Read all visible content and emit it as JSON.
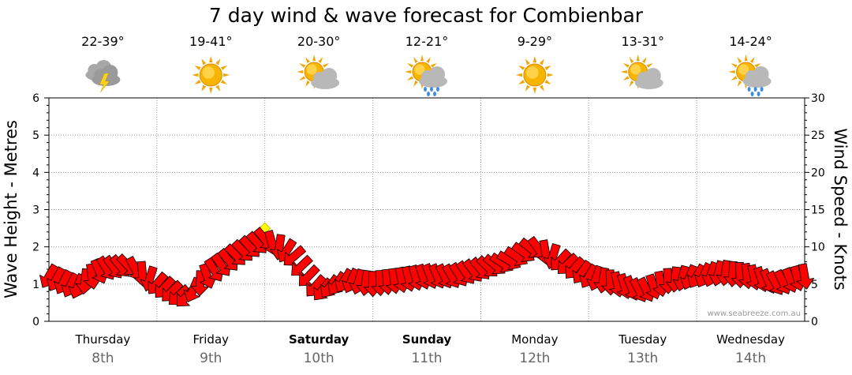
{
  "chart_data": {
    "type": "line",
    "title": "7 day wind & wave forecast for Combienbar",
    "ylabel": "Wave Height - Metres",
    "y2label": "Wind Speed - Knots",
    "ylim": [
      0,
      6
    ],
    "y2lim": [
      0,
      30
    ],
    "yticks": [
      "0",
      "1",
      "2",
      "3",
      "4",
      "5",
      "6"
    ],
    "y2ticks": [
      "0",
      "5",
      "10",
      "15",
      "20",
      "25",
      "30"
    ],
    "grid": true,
    "days": [
      {
        "name": "Thursday",
        "date": "8th",
        "bold": false,
        "temp": "22-39°",
        "icon": "storm-cloud-icon"
      },
      {
        "name": "Friday",
        "date": "9th",
        "bold": false,
        "temp": "19-41°",
        "icon": "sun-icon"
      },
      {
        "name": "Saturday",
        "date": "10th",
        "bold": true,
        "temp": "20-30°",
        "icon": "sun-cloud-icon"
      },
      {
        "name": "Sunday",
        "date": "11th",
        "bold": true,
        "temp": "12-21°",
        "icon": "sun-rain-icon"
      },
      {
        "name": "Monday",
        "date": "12th",
        "bold": false,
        "temp": "9-29°",
        "icon": "sun-icon"
      },
      {
        "name": "Tuesday",
        "date": "13th",
        "bold": false,
        "temp": "13-31°",
        "icon": "sun-cloud-icon"
      },
      {
        "name": "Wednesday",
        "date": "14th",
        "bold": false,
        "temp": "14-24°",
        "icon": "sun-rain-icon"
      }
    ],
    "series": [
      {
        "name": "Wind Speed",
        "unit": "knots",
        "color": "#ff0000",
        "x_hours": [
          0,
          6,
          12,
          18,
          24,
          30,
          36,
          42,
          48,
          54,
          60,
          66,
          72,
          78,
          84,
          90,
          96,
          102,
          108,
          114,
          120,
          126,
          132,
          138,
          144,
          150,
          156,
          162,
          168
        ],
        "values": [
          6,
          4.5,
          7,
          7.5,
          5,
          3,
          6.5,
          9,
          11,
          9,
          4,
          5.5,
          5,
          5.5,
          6,
          6,
          7,
          8,
          10,
          8,
          6,
          5,
          4,
          5.5,
          6,
          6.5,
          6,
          5,
          6
        ],
        "direction_deg": [
          120,
          115,
          60,
          45,
          130,
          140,
          60,
          45,
          50,
          140,
          130,
          120,
          90,
          80,
          70,
          60,
          50,
          30,
          40,
          140,
          120,
          80,
          60,
          90,
          120,
          100,
          80,
          60,
          80
        ]
      },
      {
        "name": "Wind Gust",
        "unit": "knots",
        "color": "#ffff00",
        "x_hours": [
          48
        ],
        "values": [
          12.5
        ]
      }
    ]
  },
  "watermark": "www.seabreeze.com.au"
}
